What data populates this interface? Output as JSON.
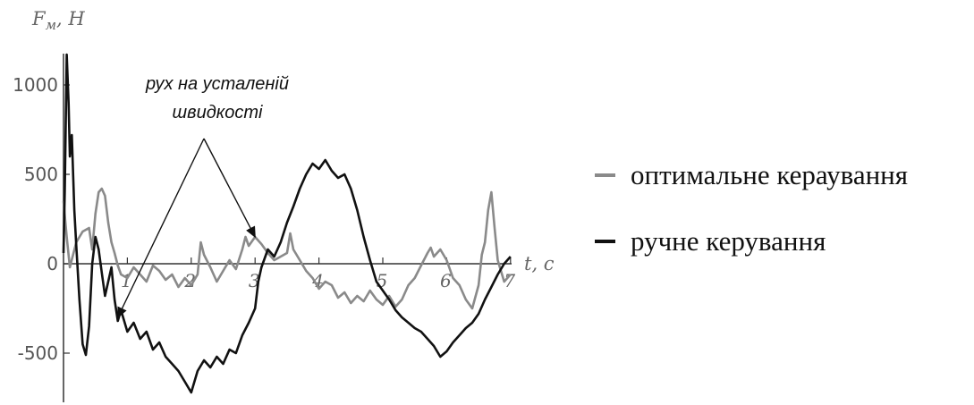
{
  "chart_data": {
    "type": "line",
    "title": "",
    "xlabel": "t, c",
    "ylabel": "F_м, Н",
    "y_label_main": "F",
    "y_label_sub": "м",
    "y_label_rest": ", Н",
    "xlim": [
      0,
      7
    ],
    "ylim": [
      -750,
      1200
    ],
    "grid": false,
    "legend_position": "right",
    "x_ticks": [
      1,
      2,
      3,
      4,
      5,
      6,
      7
    ],
    "x_tick_labels": [
      "1",
      "2",
      "3",
      "4",
      "5",
      "6",
      "7"
    ],
    "y_ticks": [
      -500,
      0,
      500,
      1000
    ],
    "y_tick_labels": [
      "-500",
      "0",
      "500",
      "1000"
    ],
    "annotation": {
      "line1": "рух на усталеній",
      "line2": "швидкості",
      "points_to": [
        {
          "x": 0.85,
          "y": -300
        },
        {
          "x": 3.0,
          "y": 150
        }
      ]
    },
    "series": [
      {
        "name": "оптимальне кераування",
        "color": "#8a8a8a",
        "points": [
          [
            0.0,
            350
          ],
          [
            0.05,
            150
          ],
          [
            0.1,
            -20
          ],
          [
            0.2,
            120
          ],
          [
            0.3,
            180
          ],
          [
            0.4,
            200
          ],
          [
            0.45,
            80
          ],
          [
            0.5,
            280
          ],
          [
            0.55,
            400
          ],
          [
            0.6,
            420
          ],
          [
            0.65,
            380
          ],
          [
            0.7,
            230
          ],
          [
            0.75,
            120
          ],
          [
            0.8,
            60
          ],
          [
            0.85,
            -10
          ],
          [
            0.9,
            -60
          ],
          [
            1.0,
            -80
          ],
          [
            1.1,
            -20
          ],
          [
            1.2,
            -60
          ],
          [
            1.3,
            -100
          ],
          [
            1.4,
            -10
          ],
          [
            1.5,
            -40
          ],
          [
            1.6,
            -90
          ],
          [
            1.7,
            -60
          ],
          [
            1.8,
            -130
          ],
          [
            1.9,
            -80
          ],
          [
            2.0,
            -120
          ],
          [
            2.1,
            -60
          ],
          [
            2.15,
            120
          ],
          [
            2.2,
            50
          ],
          [
            2.3,
            -20
          ],
          [
            2.4,
            -100
          ],
          [
            2.5,
            -40
          ],
          [
            2.6,
            20
          ],
          [
            2.7,
            -30
          ],
          [
            2.8,
            80
          ],
          [
            2.85,
            150
          ],
          [
            2.9,
            100
          ],
          [
            3.0,
            150
          ],
          [
            3.1,
            110
          ],
          [
            3.2,
            60
          ],
          [
            3.3,
            20
          ],
          [
            3.4,
            40
          ],
          [
            3.5,
            60
          ],
          [
            3.55,
            170
          ],
          [
            3.6,
            80
          ],
          [
            3.7,
            20
          ],
          [
            3.8,
            -40
          ],
          [
            3.9,
            -80
          ],
          [
            4.0,
            -140
          ],
          [
            4.1,
            -100
          ],
          [
            4.2,
            -120
          ],
          [
            4.3,
            -190
          ],
          [
            4.4,
            -160
          ],
          [
            4.5,
            -220
          ],
          [
            4.6,
            -180
          ],
          [
            4.7,
            -210
          ],
          [
            4.8,
            -150
          ],
          [
            4.9,
            -200
          ],
          [
            5.0,
            -230
          ],
          [
            5.1,
            -180
          ],
          [
            5.2,
            -240
          ],
          [
            5.3,
            -200
          ],
          [
            5.4,
            -120
          ],
          [
            5.5,
            -80
          ],
          [
            5.6,
            -10
          ],
          [
            5.7,
            60
          ],
          [
            5.75,
            90
          ],
          [
            5.8,
            40
          ],
          [
            5.9,
            80
          ],
          [
            6.0,
            20
          ],
          [
            6.1,
            -80
          ],
          [
            6.2,
            -120
          ],
          [
            6.3,
            -200
          ],
          [
            6.4,
            -250
          ],
          [
            6.5,
            -120
          ],
          [
            6.55,
            50
          ],
          [
            6.6,
            120
          ],
          [
            6.65,
            300
          ],
          [
            6.7,
            400
          ],
          [
            6.75,
            200
          ],
          [
            6.8,
            20
          ],
          [
            6.9,
            -100
          ],
          [
            7.0,
            -60
          ]
        ]
      },
      {
        "name": "ручне керування",
        "color": "#111111",
        "points": [
          [
            0.0,
            60
          ],
          [
            0.02,
            400
          ],
          [
            0.05,
            1170
          ],
          [
            0.08,
            900
          ],
          [
            0.1,
            600
          ],
          [
            0.13,
            720
          ],
          [
            0.17,
            300
          ],
          [
            0.2,
            100
          ],
          [
            0.25,
            -200
          ],
          [
            0.3,
            -450
          ],
          [
            0.35,
            -510
          ],
          [
            0.4,
            -350
          ],
          [
            0.45,
            0
          ],
          [
            0.5,
            150
          ],
          [
            0.55,
            80
          ],
          [
            0.6,
            -50
          ],
          [
            0.65,
            -180
          ],
          [
            0.7,
            -100
          ],
          [
            0.75,
            -20
          ],
          [
            0.8,
            -200
          ],
          [
            0.85,
            -320
          ],
          [
            0.9,
            -260
          ],
          [
            1.0,
            -380
          ],
          [
            1.1,
            -330
          ],
          [
            1.2,
            -420
          ],
          [
            1.3,
            -380
          ],
          [
            1.4,
            -480
          ],
          [
            1.5,
            -440
          ],
          [
            1.6,
            -520
          ],
          [
            1.7,
            -560
          ],
          [
            1.8,
            -600
          ],
          [
            1.9,
            -660
          ],
          [
            2.0,
            -720
          ],
          [
            2.1,
            -600
          ],
          [
            2.2,
            -540
          ],
          [
            2.3,
            -580
          ],
          [
            2.4,
            -520
          ],
          [
            2.5,
            -560
          ],
          [
            2.6,
            -480
          ],
          [
            2.7,
            -500
          ],
          [
            2.8,
            -400
          ],
          [
            2.9,
            -330
          ],
          [
            3.0,
            -250
          ],
          [
            3.05,
            -100
          ],
          [
            3.1,
            -20
          ],
          [
            3.2,
            80
          ],
          [
            3.3,
            40
          ],
          [
            3.4,
            120
          ],
          [
            3.5,
            230
          ],
          [
            3.6,
            320
          ],
          [
            3.7,
            420
          ],
          [
            3.8,
            500
          ],
          [
            3.9,
            560
          ],
          [
            4.0,
            530
          ],
          [
            4.1,
            580
          ],
          [
            4.2,
            520
          ],
          [
            4.3,
            480
          ],
          [
            4.4,
            500
          ],
          [
            4.5,
            420
          ],
          [
            4.6,
            300
          ],
          [
            4.7,
            150
          ],
          [
            4.8,
            20
          ],
          [
            4.9,
            -100
          ],
          [
            5.0,
            -150
          ],
          [
            5.1,
            -200
          ],
          [
            5.2,
            -260
          ],
          [
            5.3,
            -300
          ],
          [
            5.4,
            -330
          ],
          [
            5.5,
            -360
          ],
          [
            5.6,
            -380
          ],
          [
            5.7,
            -420
          ],
          [
            5.8,
            -460
          ],
          [
            5.9,
            -520
          ],
          [
            6.0,
            -490
          ],
          [
            6.1,
            -440
          ],
          [
            6.2,
            -400
          ],
          [
            6.3,
            -360
          ],
          [
            6.4,
            -330
          ],
          [
            6.5,
            -280
          ],
          [
            6.6,
            -200
          ],
          [
            6.7,
            -130
          ],
          [
            6.8,
            -60
          ],
          [
            6.9,
            0
          ],
          [
            7.0,
            40
          ]
        ]
      }
    ]
  }
}
